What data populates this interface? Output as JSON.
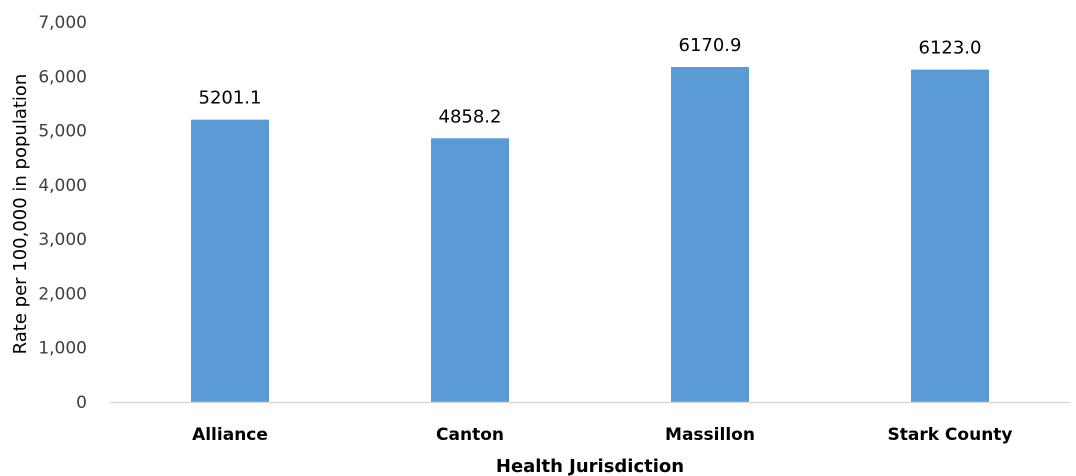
{
  "chart_data": {
    "type": "bar",
    "title": "",
    "xlabel": "Health Jurisdiction",
    "ylabel": "Rate per 100,000 in population",
    "categories": [
      "Alliance",
      "Canton",
      "Massillon",
      "Stark County"
    ],
    "values": [
      5201.1,
      4858.2,
      6170.9,
      6123.0
    ],
    "data_labels": [
      "5201.1",
      "4858.2",
      "6170.9",
      "6123.0"
    ],
    "ylim": [
      0,
      7000
    ],
    "yticks": [
      0,
      1000,
      2000,
      3000,
      4000,
      5000,
      6000,
      7000
    ],
    "ytick_labels": [
      "0",
      "1,000",
      "2,000",
      "3,000",
      "4,000",
      "5,000",
      "6,000",
      "7,000"
    ],
    "grid": false,
    "legend": "none",
    "bar_color": "#5B9BD5",
    "axis_color": "#D9D9D9"
  }
}
